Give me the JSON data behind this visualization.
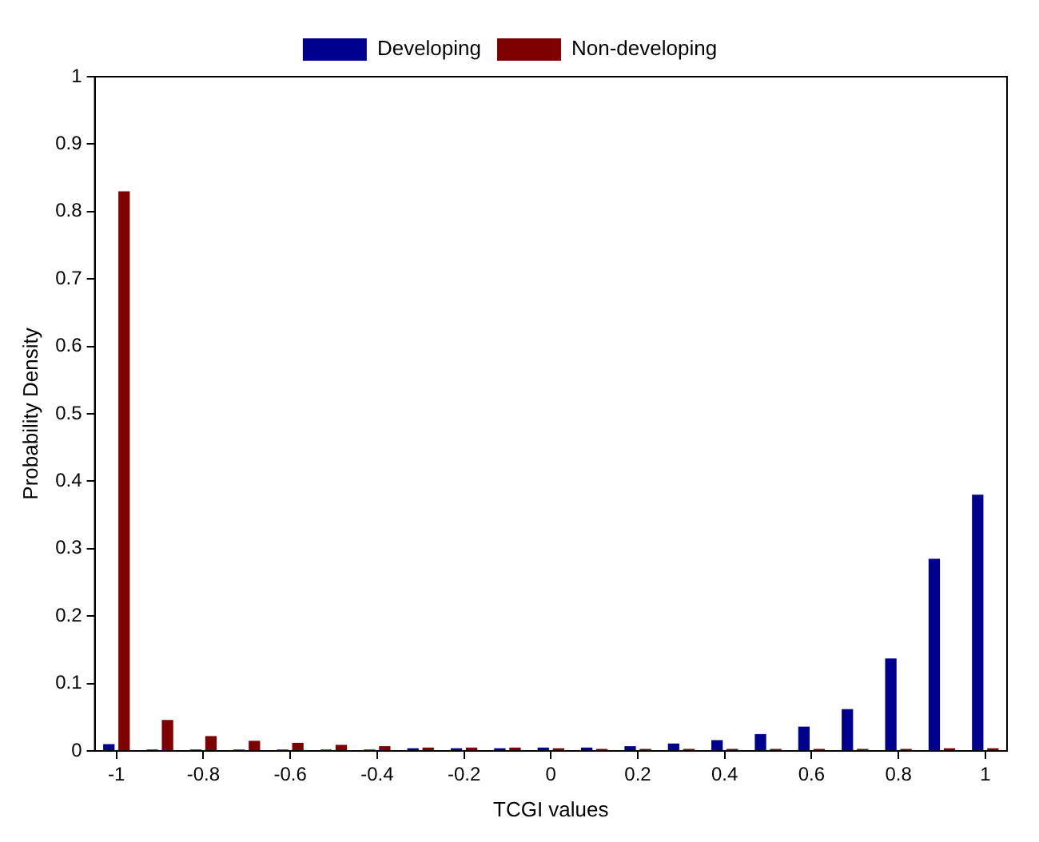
{
  "chart_data": {
    "type": "bar",
    "xlabel": "TCGI values",
    "ylabel": "Probability Density",
    "x": [
      -1,
      -0.9,
      -0.8,
      -0.7,
      -0.6,
      -0.5,
      -0.4,
      -0.3,
      -0.2,
      -0.1,
      0,
      0.1,
      0.2,
      0.3,
      0.4,
      0.5,
      0.6,
      0.7,
      0.8,
      0.9,
      1
    ],
    "series": [
      {
        "name": "Developing",
        "color": "#00008f",
        "values": [
          0.01,
          0.002,
          0.002,
          0.002,
          0.002,
          0.002,
          0.002,
          0.004,
          0.004,
          0.004,
          0.005,
          0.005,
          0.007,
          0.011,
          0.016,
          0.025,
          0.036,
          0.062,
          0.137,
          0.285,
          0.38
        ]
      },
      {
        "name": "Non-developing",
        "color": "#7f0000",
        "values": [
          0.83,
          0.046,
          0.022,
          0.015,
          0.012,
          0.009,
          0.007,
          0.005,
          0.005,
          0.005,
          0.004,
          0.003,
          0.003,
          0.003,
          0.003,
          0.003,
          0.003,
          0.003,
          0.003,
          0.004,
          0.004
        ]
      }
    ],
    "xlim": [
      -1.05,
      1.05
    ],
    "xticks": [
      -1,
      -0.8,
      -0.6,
      -0.4,
      -0.2,
      0,
      0.2,
      0.4,
      0.6,
      0.8,
      1
    ],
    "ylim": [
      0,
      1
    ],
    "yticks": [
      0,
      0.1,
      0.2,
      0.3,
      0.4,
      0.5,
      0.6,
      0.7,
      0.8,
      0.9,
      1
    ],
    "grid": false,
    "legend": "top"
  }
}
